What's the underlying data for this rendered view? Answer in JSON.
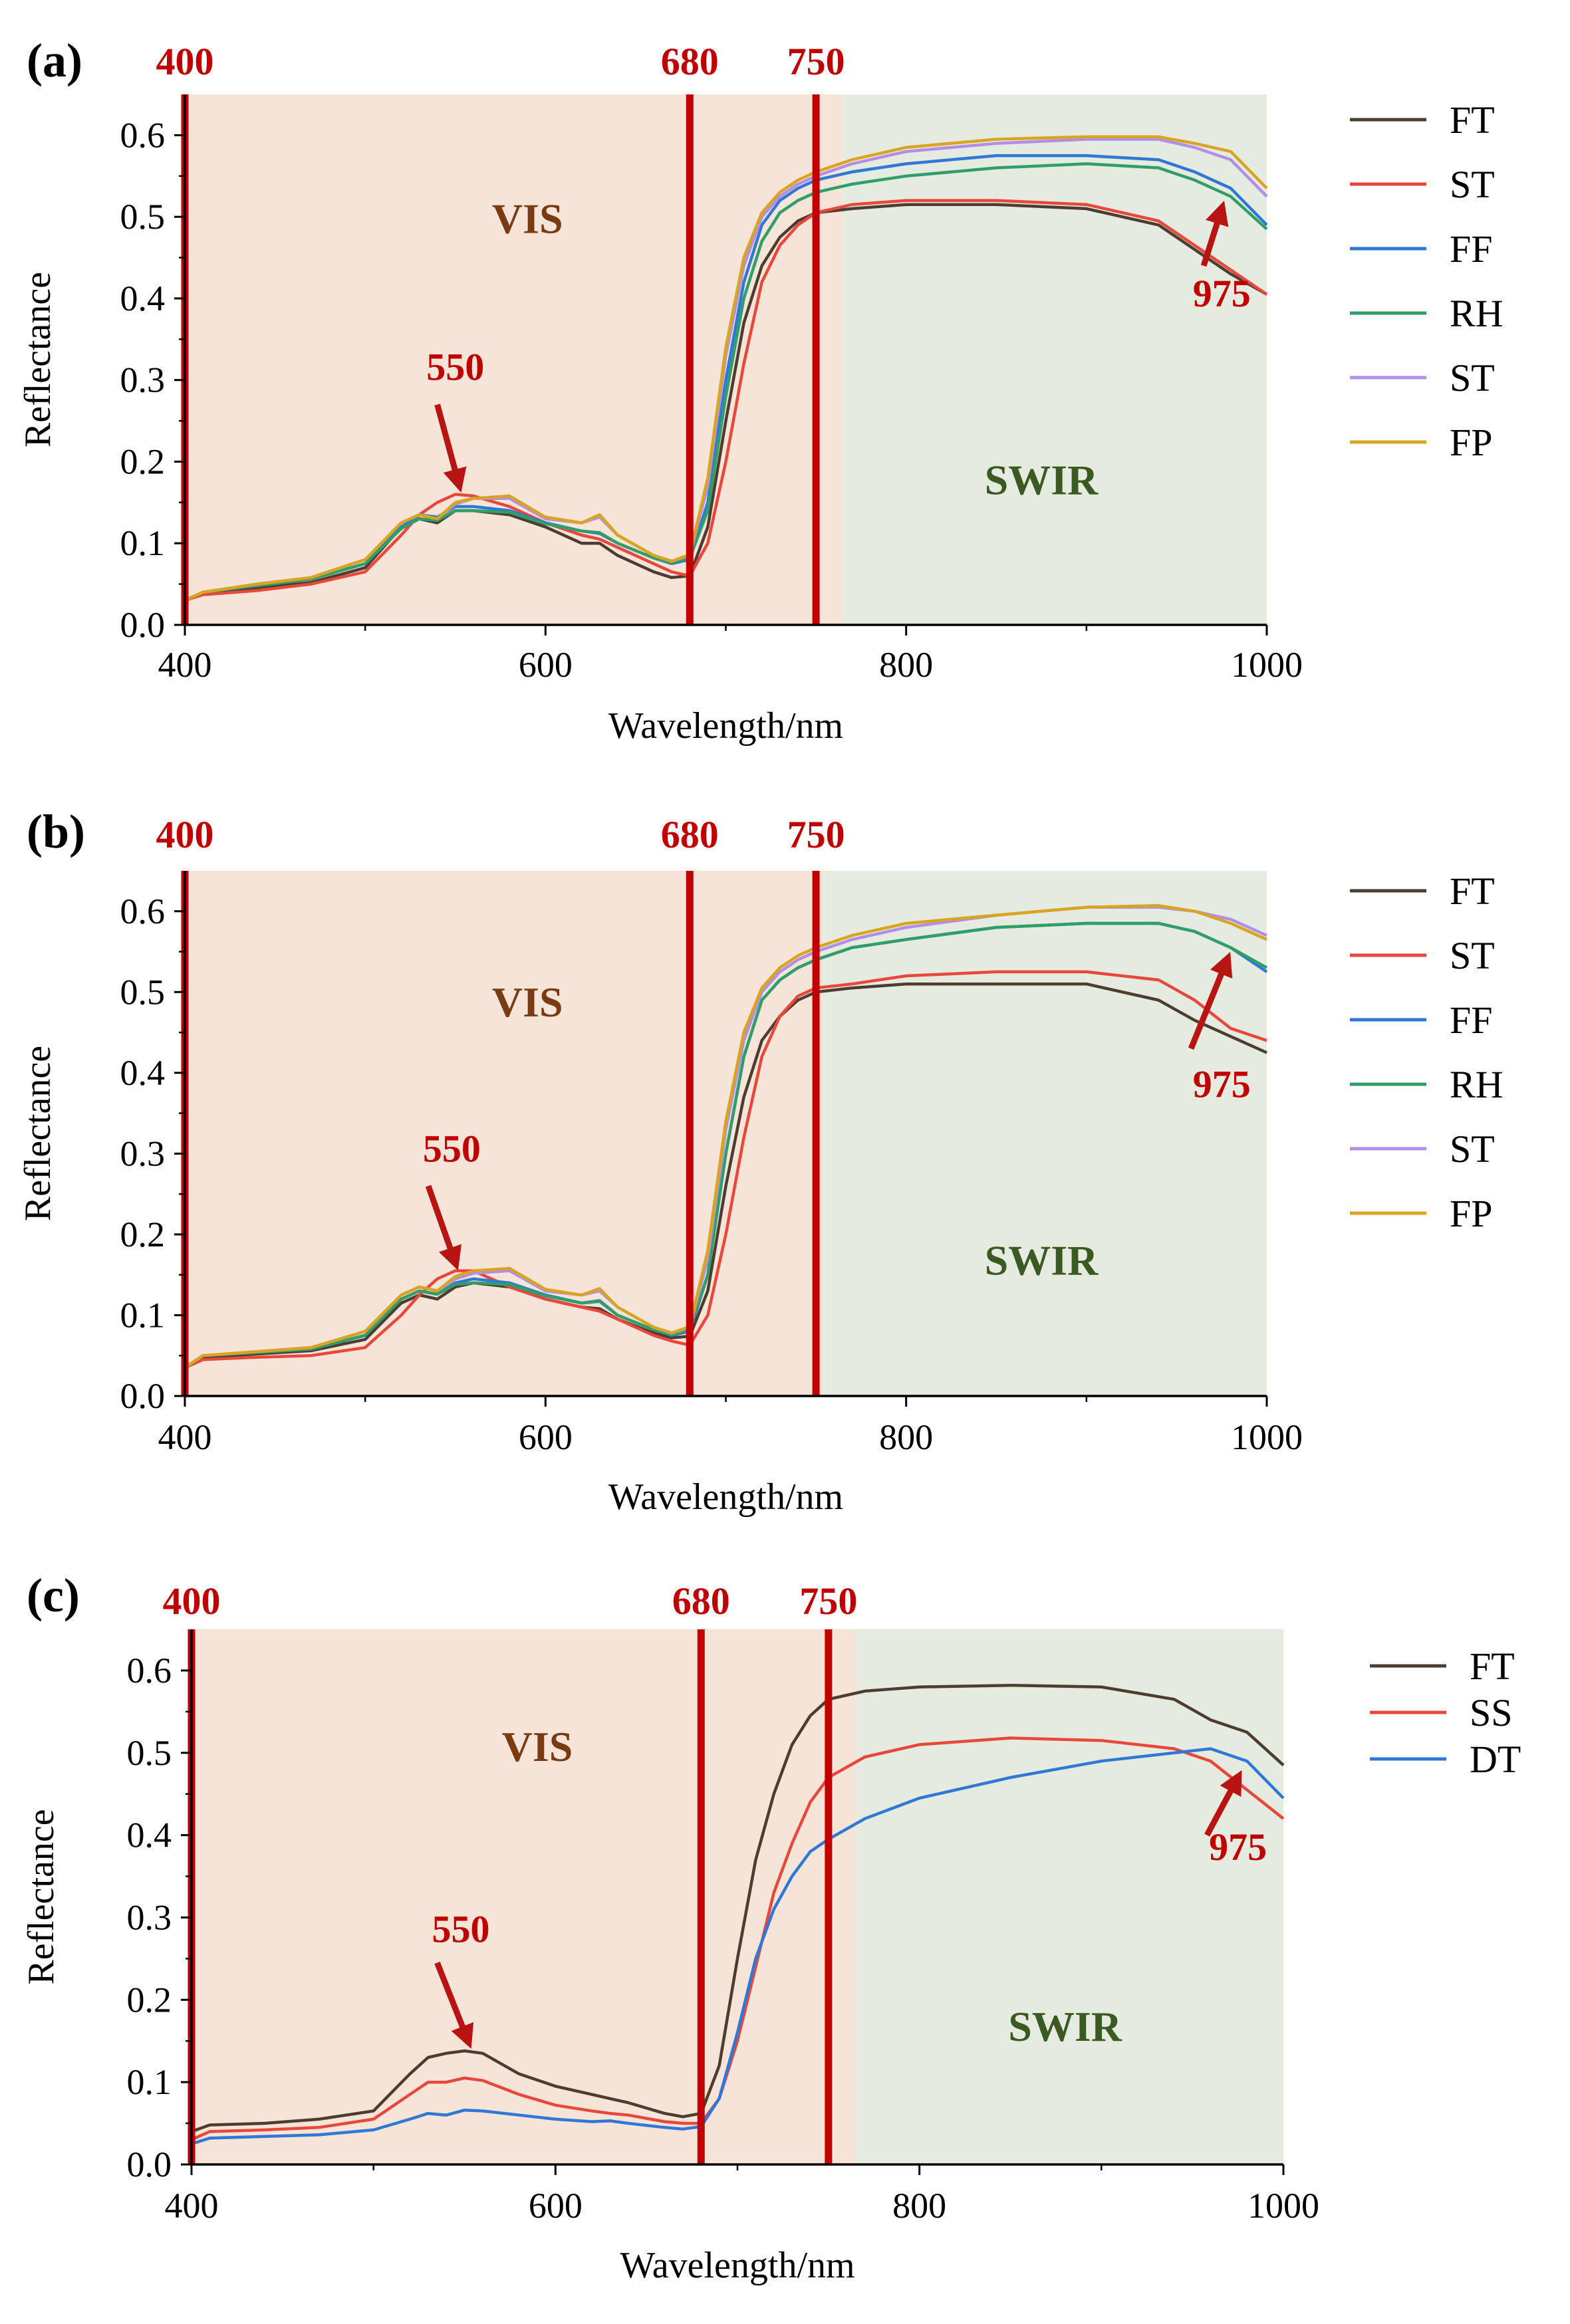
{
  "figure": {
    "colors": {
      "vis_band": "#f7e4d8",
      "swir_band": "#e6ebdf",
      "marker": "#c00000",
      "arrow": "#b81414",
      "vis_text": "#7a3b12",
      "swir_text": "#3b5a22",
      "FT": "#4d3d30",
      "ST_red": "#e8473c",
      "FF": "#2f78d6",
      "RH": "#2f9e69",
      "ST_violet": "#b18ee8",
      "FP": "#d9a521",
      "SS": "#e8473c",
      "DT": "#2f78d6"
    }
  },
  "chart_data": [
    {
      "type": "line",
      "panel": "(a)",
      "xlabel": "Wavelength/nm",
      "ylabel": "Reflectance",
      "xlim": [
        400,
        1000
      ],
      "ylim": [
        0.0,
        0.65
      ],
      "xticks": [
        "400",
        "600",
        "800",
        "1000"
      ],
      "yticks": [
        "0.0",
        "0.1",
        "0.2",
        "0.3",
        "0.4",
        "0.5",
        "0.6"
      ],
      "grid": false,
      "legend_position": "right",
      "regions": [
        {
          "label": "VIS",
          "x": [
            400,
            765
          ],
          "color": "vis_band",
          "text_color": "vis_text",
          "label_at": [
            590,
            0.48
          ]
        },
        {
          "label": "SWIR",
          "x": [
            765,
            1000
          ],
          "color": "swir_band",
          "text_color": "swir_text",
          "label_at": [
            875,
            0.16
          ]
        }
      ],
      "markers": [
        {
          "x": 400,
          "label": "400"
        },
        {
          "x": 680,
          "label": "680"
        },
        {
          "x": 750,
          "label": "750"
        }
      ],
      "annotations": [
        {
          "label": "550",
          "text_at": [
            550,
            0.3
          ],
          "arrow_from": [
            540,
            0.27
          ],
          "arrow_to": [
            552,
            0.172
          ]
        },
        {
          "label": "975",
          "text_at": [
            975,
            0.39
          ],
          "arrow_from": [
            965,
            0.44
          ],
          "arrow_to": [
            975,
            0.51
          ]
        }
      ],
      "x": [
        400,
        410,
        440,
        470,
        500,
        520,
        530,
        540,
        550,
        560,
        580,
        600,
        620,
        630,
        640,
        660,
        670,
        680,
        690,
        700,
        710,
        720,
        730,
        740,
        750,
        770,
        800,
        850,
        900,
        940,
        960,
        980,
        1000
      ],
      "series": [
        {
          "name": "FT",
          "color": "FT",
          "values": [
            0.03,
            0.04,
            0.045,
            0.052,
            0.07,
            0.12,
            0.13,
            0.125,
            0.14,
            0.14,
            0.135,
            0.12,
            0.1,
            0.1,
            0.085,
            0.065,
            0.058,
            0.06,
            0.12,
            0.25,
            0.37,
            0.44,
            0.475,
            0.495,
            0.505,
            0.51,
            0.515,
            0.515,
            0.51,
            0.49,
            0.46,
            0.43,
            0.405
          ]
        },
        {
          "name": "ST",
          "color": "ST_red",
          "values": [
            0.03,
            0.037,
            0.042,
            0.05,
            0.065,
            0.11,
            0.135,
            0.15,
            0.16,
            0.158,
            0.145,
            0.125,
            0.11,
            0.105,
            0.095,
            0.075,
            0.065,
            0.06,
            0.1,
            0.2,
            0.32,
            0.42,
            0.465,
            0.49,
            0.505,
            0.515,
            0.52,
            0.52,
            0.515,
            0.495,
            0.465,
            0.435,
            0.405
          ]
        },
        {
          "name": "FF",
          "color": "FF",
          "values": [
            0.03,
            0.04,
            0.048,
            0.056,
            0.075,
            0.12,
            0.135,
            0.132,
            0.145,
            0.145,
            0.14,
            0.125,
            0.115,
            0.112,
            0.1,
            0.082,
            0.075,
            0.08,
            0.15,
            0.3,
            0.42,
            0.49,
            0.52,
            0.535,
            0.545,
            0.555,
            0.565,
            0.575,
            0.575,
            0.57,
            0.555,
            0.535,
            0.49
          ]
        },
        {
          "name": "RH",
          "color": "RH",
          "values": [
            0.03,
            0.04,
            0.048,
            0.056,
            0.075,
            0.118,
            0.13,
            0.128,
            0.14,
            0.14,
            0.138,
            0.124,
            0.115,
            0.113,
            0.1,
            0.082,
            0.076,
            0.082,
            0.14,
            0.28,
            0.4,
            0.47,
            0.505,
            0.52,
            0.53,
            0.54,
            0.55,
            0.56,
            0.565,
            0.56,
            0.545,
            0.525,
            0.485
          ]
        },
        {
          "name": "ST",
          "color": "ST_violet",
          "values": [
            0.03,
            0.04,
            0.05,
            0.058,
            0.08,
            0.125,
            0.135,
            0.13,
            0.148,
            0.155,
            0.155,
            0.13,
            0.125,
            0.132,
            0.11,
            0.085,
            0.078,
            0.085,
            0.17,
            0.33,
            0.44,
            0.5,
            0.525,
            0.54,
            0.55,
            0.565,
            0.58,
            0.59,
            0.595,
            0.595,
            0.585,
            0.57,
            0.525
          ]
        },
        {
          "name": "FP",
          "color": "FP",
          "values": [
            0.03,
            0.04,
            0.05,
            0.058,
            0.08,
            0.125,
            0.135,
            0.13,
            0.15,
            0.155,
            0.158,
            0.132,
            0.125,
            0.135,
            0.11,
            0.085,
            0.078,
            0.086,
            0.18,
            0.34,
            0.45,
            0.505,
            0.53,
            0.545,
            0.555,
            0.57,
            0.585,
            0.595,
            0.598,
            0.598,
            0.59,
            0.58,
            0.535
          ]
        }
      ]
    },
    {
      "type": "line",
      "panel": "(b)",
      "xlabel": "Wavelength/nm",
      "ylabel": "Reflectance",
      "xlim": [
        400,
        1000
      ],
      "ylim": [
        0.0,
        0.65
      ],
      "xticks": [
        "400",
        "600",
        "800",
        "1000"
      ],
      "yticks": [
        "0.0",
        "0.1",
        "0.2",
        "0.3",
        "0.4",
        "0.5",
        "0.6"
      ],
      "grid": false,
      "legend_position": "right",
      "regions": [
        {
          "label": "VIS",
          "x": [
            400,
            755
          ],
          "color": "vis_band",
          "text_color": "vis_text",
          "label_at": [
            590,
            0.47
          ]
        },
        {
          "label": "SWIR",
          "x": [
            755,
            1000
          ],
          "color": "swir_band",
          "text_color": "swir_text",
          "label_at": [
            875,
            0.15
          ]
        }
      ],
      "markers": [
        {
          "x": 400,
          "label": "400"
        },
        {
          "x": 680,
          "label": "680"
        },
        {
          "x": 750,
          "label": "750"
        }
      ],
      "annotations": [
        {
          "label": "550",
          "text_at": [
            548,
            0.29
          ],
          "arrow_from": [
            535,
            0.26
          ],
          "arrow_to": [
            550,
            0.165
          ]
        },
        {
          "label": "975",
          "text_at": [
            975,
            0.37
          ],
          "arrow_from": [
            958,
            0.43
          ],
          "arrow_to": [
            978,
            0.54
          ]
        }
      ],
      "x": [
        400,
        410,
        440,
        470,
        500,
        520,
        530,
        540,
        550,
        560,
        580,
        600,
        620,
        630,
        640,
        660,
        670,
        680,
        690,
        700,
        710,
        720,
        730,
        740,
        750,
        770,
        800,
        850,
        900,
        940,
        960,
        980,
        1000
      ],
      "series": [
        {
          "name": "FT",
          "color": "FT",
          "values": [
            0.035,
            0.048,
            0.052,
            0.056,
            0.07,
            0.115,
            0.125,
            0.12,
            0.135,
            0.14,
            0.135,
            0.12,
            0.11,
            0.108,
            0.095,
            0.078,
            0.072,
            0.074,
            0.13,
            0.26,
            0.37,
            0.44,
            0.47,
            0.49,
            0.5,
            0.505,
            0.51,
            0.51,
            0.51,
            0.49,
            0.465,
            0.445,
            0.425
          ]
        },
        {
          "name": "ST",
          "color": "ST_red",
          "values": [
            0.035,
            0.045,
            0.048,
            0.05,
            0.06,
            0.1,
            0.125,
            0.145,
            0.155,
            0.155,
            0.135,
            0.12,
            0.11,
            0.105,
            0.095,
            0.075,
            0.068,
            0.063,
            0.1,
            0.2,
            0.32,
            0.42,
            0.47,
            0.495,
            0.505,
            0.51,
            0.52,
            0.525,
            0.525,
            0.515,
            0.49,
            0.455,
            0.44
          ]
        },
        {
          "name": "FF",
          "color": "FF",
          "values": [
            0.035,
            0.05,
            0.054,
            0.058,
            0.075,
            0.12,
            0.13,
            0.126,
            0.14,
            0.145,
            0.14,
            0.125,
            0.115,
            0.118,
            0.1,
            0.082,
            0.075,
            0.08,
            0.15,
            0.3,
            0.42,
            0.49,
            0.515,
            0.53,
            0.54,
            0.555,
            0.565,
            0.58,
            0.585,
            0.585,
            0.575,
            0.555,
            0.525
          ]
        },
        {
          "name": "RH",
          "color": "RH",
          "values": [
            0.035,
            0.05,
            0.054,
            0.058,
            0.075,
            0.12,
            0.13,
            0.126,
            0.138,
            0.14,
            0.138,
            0.124,
            0.115,
            0.117,
            0.1,
            0.082,
            0.076,
            0.082,
            0.15,
            0.3,
            0.42,
            0.49,
            0.515,
            0.53,
            0.54,
            0.555,
            0.565,
            0.58,
            0.585,
            0.585,
            0.575,
            0.555,
            0.53
          ]
        },
        {
          "name": "ST",
          "color": "ST_violet",
          "values": [
            0.035,
            0.05,
            0.055,
            0.06,
            0.08,
            0.125,
            0.135,
            0.13,
            0.145,
            0.152,
            0.155,
            0.13,
            0.125,
            0.13,
            0.11,
            0.085,
            0.078,
            0.085,
            0.17,
            0.33,
            0.44,
            0.5,
            0.525,
            0.54,
            0.55,
            0.565,
            0.58,
            0.595,
            0.605,
            0.605,
            0.6,
            0.59,
            0.57
          ]
        },
        {
          "name": "FP",
          "color": "FP",
          "values": [
            0.035,
            0.05,
            0.055,
            0.06,
            0.08,
            0.125,
            0.135,
            0.13,
            0.148,
            0.155,
            0.158,
            0.132,
            0.125,
            0.133,
            0.11,
            0.085,
            0.078,
            0.086,
            0.18,
            0.34,
            0.45,
            0.505,
            0.53,
            0.545,
            0.555,
            0.57,
            0.585,
            0.595,
            0.605,
            0.607,
            0.6,
            0.585,
            0.565
          ]
        }
      ]
    },
    {
      "type": "line",
      "panel": "(c)",
      "xlabel": "Wavelength/nm",
      "ylabel": "Reflectance",
      "xlim": [
        400,
        1000
      ],
      "ylim": [
        0.0,
        0.65
      ],
      "xticks": [
        "400",
        "600",
        "800",
        "1000"
      ],
      "yticks": [
        "0.0",
        "0.1",
        "0.2",
        "0.3",
        "0.4",
        "0.5",
        "0.6"
      ],
      "grid": false,
      "legend_position": "top-right",
      "regions": [
        {
          "label": "VIS",
          "x": [
            400,
            765
          ],
          "color": "vis_band",
          "text_color": "vis_text",
          "label_at": [
            590,
            0.49
          ]
        },
        {
          "label": "SWIR",
          "x": [
            765,
            1000
          ],
          "color": "swir_band",
          "text_color": "swir_text",
          "label_at": [
            880,
            0.15
          ]
        }
      ],
      "markers": [
        {
          "x": 400,
          "label": "400"
        },
        {
          "x": 680,
          "label": "680"
        },
        {
          "x": 750,
          "label": "750"
        }
      ],
      "annotations": [
        {
          "label": "550",
          "text_at": [
            548,
            0.27
          ],
          "arrow_from": [
            535,
            0.245
          ],
          "arrow_to": [
            552,
            0.15
          ]
        },
        {
          "label": "975",
          "text_at": [
            975,
            0.37
          ],
          "arrow_from": [
            958,
            0.4
          ],
          "arrow_to": [
            975,
            0.47
          ]
        }
      ],
      "x": [
        400,
        410,
        440,
        470,
        500,
        520,
        530,
        540,
        550,
        560,
        580,
        600,
        620,
        630,
        640,
        660,
        670,
        680,
        690,
        700,
        710,
        720,
        730,
        740,
        750,
        770,
        800,
        850,
        900,
        940,
        960,
        980,
        1000
      ],
      "series": [
        {
          "name": "FT",
          "color": "FT",
          "values": [
            0.04,
            0.048,
            0.05,
            0.055,
            0.065,
            0.11,
            0.13,
            0.135,
            0.138,
            0.135,
            0.11,
            0.095,
            0.085,
            0.08,
            0.075,
            0.062,
            0.058,
            0.062,
            0.12,
            0.25,
            0.37,
            0.45,
            0.51,
            0.545,
            0.565,
            0.575,
            0.58,
            0.582,
            0.58,
            0.565,
            0.54,
            0.525,
            0.485
          ]
        },
        {
          "name": "SS",
          "color": "SS",
          "values": [
            0.03,
            0.04,
            0.042,
            0.045,
            0.055,
            0.085,
            0.1,
            0.1,
            0.105,
            0.102,
            0.085,
            0.072,
            0.065,
            0.062,
            0.06,
            0.052,
            0.05,
            0.05,
            0.08,
            0.15,
            0.24,
            0.33,
            0.39,
            0.44,
            0.47,
            0.495,
            0.51,
            0.518,
            0.515,
            0.505,
            0.49,
            0.455,
            0.42
          ]
        },
        {
          "name": "DT",
          "color": "DT",
          "values": [
            0.025,
            0.032,
            0.034,
            0.036,
            0.042,
            0.055,
            0.062,
            0.06,
            0.066,
            0.065,
            0.06,
            0.055,
            0.052,
            0.053,
            0.05,
            0.045,
            0.043,
            0.046,
            0.08,
            0.16,
            0.25,
            0.31,
            0.35,
            0.38,
            0.395,
            0.42,
            0.445,
            0.47,
            0.49,
            0.5,
            0.505,
            0.49,
            0.445
          ]
        }
      ]
    }
  ]
}
